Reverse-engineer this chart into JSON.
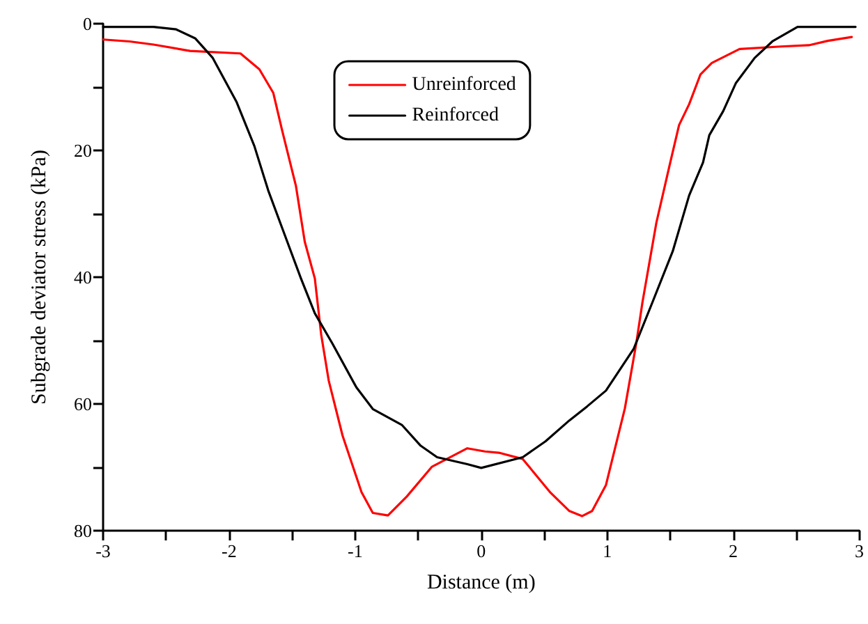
{
  "chart_data": {
    "type": "line",
    "xlabel": "Distance (m)",
    "ylabel": "Subgrade deviator stress (kPa)",
    "xlim": [
      -3,
      3
    ],
    "xticks": [
      -3,
      {
        "value": -2.5,
        "label": null
      },
      -2,
      {
        "value": -1.5,
        "label": null
      },
      -1,
      {
        "value": -0.5,
        "label": null
      },
      0,
      {
        "value": 0.5,
        "label": null
      },
      1,
      {
        "value": 1.5,
        "label": null
      },
      2,
      {
        "value": 2.5,
        "label": null
      },
      3
    ],
    "ylim": [
      80,
      0
    ],
    "yticks": [
      0,
      {
        "value": 10,
        "label": null
      },
      20,
      {
        "value": 30,
        "label": null
      },
      40,
      {
        "value": 50,
        "label": null
      },
      60,
      {
        "value": 70,
        "label": null
      },
      80
    ],
    "grid": false,
    "legend": "top",
    "marker": "none",
    "line_style": "solid",
    "series": [
      {
        "name": "Unreinforced",
        "color": "#ff0000",
        "x": [
          -3,
          -2.79,
          -2.6,
          -2.31,
          -1.91,
          -1.76,
          -1.65,
          -1.58,
          -1.47,
          -1.4,
          -1.32,
          -1.27,
          -1.21,
          -1.1,
          -0.95,
          -0.86,
          -0.74,
          -0.59,
          -0.39,
          -0.11,
          0.03,
          0.14,
          0.33,
          0.55,
          0.7,
          0.8,
          0.88,
          0.99,
          1.14,
          1.23,
          1.28,
          1.39,
          1.5,
          1.57,
          1.65,
          1.74,
          1.83,
          2.05,
          2.38,
          2.6,
          2.75,
          2.94
        ],
        "values": [
          2.5,
          2.8,
          3.3,
          4.3,
          4.7,
          7.2,
          10.9,
          16.8,
          25.6,
          34.4,
          40.2,
          49,
          56.3,
          65,
          73.9,
          77.2,
          77.6,
          74.6,
          69.9,
          67,
          67.5,
          67.7,
          68.7,
          74,
          76.9,
          77.7,
          76.9,
          72.8,
          60.7,
          50.5,
          43.9,
          31.4,
          21.9,
          16,
          12.7,
          8,
          6.2,
          4,
          3.6,
          3.4,
          2.7,
          2.1
        ]
      },
      {
        "name": "Reinforced",
        "color": "#000000",
        "x": [
          -3,
          -2.6,
          -2.42,
          -2.27,
          -2.13,
          -1.94,
          -1.8,
          -1.69,
          -1.58,
          -1.43,
          -1.32,
          -1.18,
          -0.99,
          -0.86,
          -0.63,
          -0.48,
          -0.35,
          -0.11,
          0,
          0.33,
          0.51,
          0.7,
          0.84,
          0.99,
          1.21,
          1.36,
          1.52,
          1.65,
          1.76,
          1.81,
          1.92,
          2.02,
          2.17,
          2.31,
          2.51,
          2.97
        ],
        "values": [
          0.5,
          0.5,
          0.9,
          2.3,
          5.4,
          12.4,
          19.3,
          26.3,
          32.2,
          40.2,
          45.7,
          50.5,
          57.4,
          60.8,
          63.3,
          66.6,
          68.4,
          69.5,
          70.1,
          68.4,
          65.9,
          62.6,
          60.4,
          57.9,
          51.3,
          43.9,
          35.9,
          27.1,
          21.9,
          17.6,
          13.8,
          9.4,
          5.4,
          2.8,
          0.5,
          0.5
        ]
      }
    ]
  }
}
